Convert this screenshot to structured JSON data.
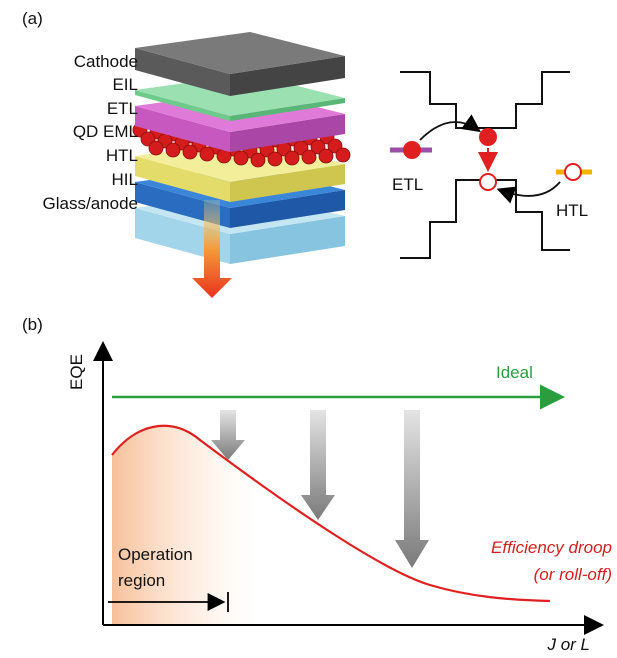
{
  "panel_a": {
    "label": "(a)",
    "layers": [
      "Cathode",
      "EIL",
      "ETL",
      "QD EML",
      "HTL",
      "HIL",
      "Glass/anode"
    ],
    "energy_diagram": {
      "left_label": "ETL",
      "right_label": "HTL"
    }
  },
  "panel_b": {
    "label": "(b)",
    "y_axis": "EQE",
    "x_axis": "J or L",
    "ideal": "Ideal",
    "droop": [
      "Efficiency droop",
      "(or roll-off)"
    ],
    "operation": [
      "Operation",
      "region"
    ]
  }
}
